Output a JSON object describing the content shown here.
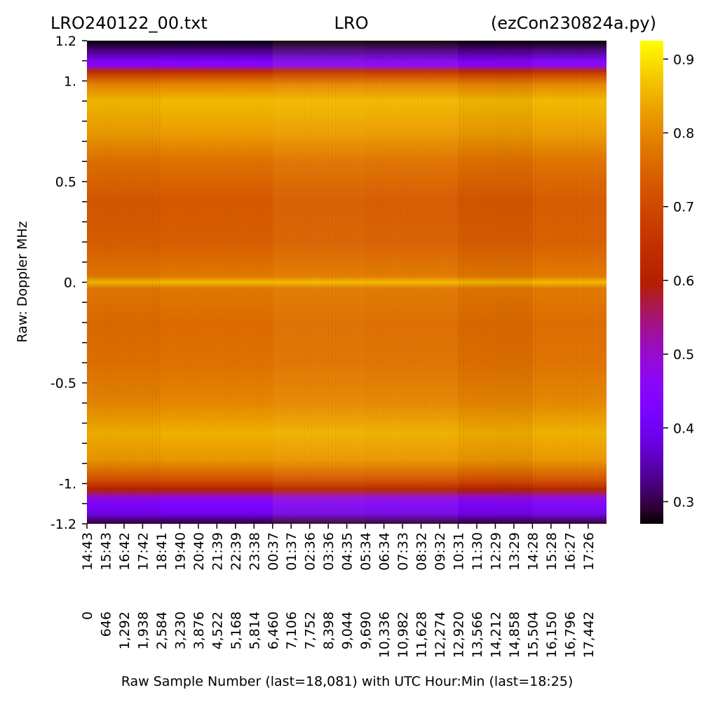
{
  "chart_data": {
    "type": "heatmap",
    "colormap": "gnuplot",
    "title_left": "LRO240122_00.txt",
    "title_center": "LRO",
    "title_right": "(ezCon230824a.py)",
    "xlabel": "Raw Sample Number (last=18,081) with UTC Hour:Min (last=18:25)",
    "ylabel": "Raw:  Doppler MHz",
    "y_range": [
      -1.2,
      1.2
    ],
    "x_range": [
      0,
      18081
    ],
    "y_tick_labels": [
      {
        "value": 1.2,
        "label": "1.2"
      },
      {
        "value": 1.0,
        "label": "1."
      },
      {
        "value": 0.5,
        "label": "0.5"
      },
      {
        "value": 0.0,
        "label": "0."
      },
      {
        "value": -0.5,
        "label": "-0.5"
      },
      {
        "value": -1.0,
        "label": "-1."
      },
      {
        "value": -1.2,
        "label": "-1.2"
      }
    ],
    "y_minor_step": 0.1,
    "x_ticks": [
      {
        "sample": 0,
        "sample_label": "0",
        "time": "14:43"
      },
      {
        "sample": 646,
        "sample_label": "646",
        "time": "15:43"
      },
      {
        "sample": 1292,
        "sample_label": "1,292",
        "time": "16:42"
      },
      {
        "sample": 1938,
        "sample_label": "1,938",
        "time": "17:42"
      },
      {
        "sample": 2584,
        "sample_label": "2,584",
        "time": "18:41"
      },
      {
        "sample": 3230,
        "sample_label": "3,230",
        "time": "19:40"
      },
      {
        "sample": 3876,
        "sample_label": "3,876",
        "time": "20:40"
      },
      {
        "sample": 4522,
        "sample_label": "4,522",
        "time": "21:39"
      },
      {
        "sample": 5168,
        "sample_label": "5,168",
        "time": "22:39"
      },
      {
        "sample": 5814,
        "sample_label": "5,814",
        "time": "23:38"
      },
      {
        "sample": 6460,
        "sample_label": "6,460",
        "time": "00:37"
      },
      {
        "sample": 7106,
        "sample_label": "7,106",
        "time": "01:37"
      },
      {
        "sample": 7752,
        "sample_label": "7,752",
        "time": "02:36"
      },
      {
        "sample": 8398,
        "sample_label": "8,398",
        "time": "03:36"
      },
      {
        "sample": 9044,
        "sample_label": "9,044",
        "time": "04:35"
      },
      {
        "sample": 9690,
        "sample_label": "9,690",
        "time": "05:34"
      },
      {
        "sample": 10336,
        "sample_label": "10,336",
        "time": "06:34"
      },
      {
        "sample": 10982,
        "sample_label": "10,982",
        "time": "07:33"
      },
      {
        "sample": 11628,
        "sample_label": "11,628",
        "time": "08:32"
      },
      {
        "sample": 12274,
        "sample_label": "12,274",
        "time": "09:32"
      },
      {
        "sample": 12920,
        "sample_label": "12,920",
        "time": "10:31"
      },
      {
        "sample": 13566,
        "sample_label": "13,566",
        "time": "11:30"
      },
      {
        "sample": 14212,
        "sample_label": "14,212",
        "time": "12:29"
      },
      {
        "sample": 14858,
        "sample_label": "14,858",
        "time": "13:29"
      },
      {
        "sample": 15504,
        "sample_label": "15,504",
        "time": "14:28"
      },
      {
        "sample": 16150,
        "sample_label": "16,150",
        "time": "15:28"
      },
      {
        "sample": 16796,
        "sample_label": "16,796",
        "time": "16:27"
      },
      {
        "sample": 17442,
        "sample_label": "17,442",
        "time": "17:26"
      }
    ],
    "colorbar": {
      "range": [
        0.27,
        0.925
      ],
      "ticks": [
        {
          "value": 0.3,
          "label": "0.3"
        },
        {
          "value": 0.4,
          "label": "0.4"
        },
        {
          "value": 0.5,
          "label": "0.5"
        },
        {
          "value": 0.6,
          "label": "0.6"
        },
        {
          "value": 0.7,
          "label": "0.7"
        },
        {
          "value": 0.8,
          "label": "0.8"
        },
        {
          "value": 0.9,
          "label": "0.9"
        }
      ]
    },
    "spectrum_profile": [
      {
        "doppler": 1.2,
        "value": 0.27
      },
      {
        "doppler": 1.15,
        "value": 0.33
      },
      {
        "doppler": 1.1,
        "value": 0.42
      },
      {
        "doppler": 1.07,
        "value": 0.48
      },
      {
        "doppler": 1.05,
        "value": 0.63
      },
      {
        "doppler": 1.02,
        "value": 0.72
      },
      {
        "doppler": 0.98,
        "value": 0.8
      },
      {
        "doppler": 0.9,
        "value": 0.86
      },
      {
        "doppler": 0.75,
        "value": 0.83
      },
      {
        "doppler": 0.6,
        "value": 0.77
      },
      {
        "doppler": 0.4,
        "value": 0.73
      },
      {
        "doppler": 0.2,
        "value": 0.74
      },
      {
        "doppler": 0.03,
        "value": 0.78
      },
      {
        "doppler": 0.0,
        "value": 0.86
      },
      {
        "doppler": -0.03,
        "value": 0.78
      },
      {
        "doppler": -0.2,
        "value": 0.76
      },
      {
        "doppler": -0.4,
        "value": 0.77
      },
      {
        "doppler": -0.6,
        "value": 0.8
      },
      {
        "doppler": -0.75,
        "value": 0.85
      },
      {
        "doppler": -0.88,
        "value": 0.82
      },
      {
        "doppler": -0.98,
        "value": 0.72
      },
      {
        "doppler": -1.03,
        "value": 0.6
      },
      {
        "doppler": -1.07,
        "value": 0.48
      },
      {
        "doppler": -1.1,
        "value": 0.43
      },
      {
        "doppler": -1.15,
        "value": 0.4
      },
      {
        "doppler": -1.2,
        "value": 0.29
      }
    ],
    "time_variation": [
      {
        "sample": 0,
        "offset": 0.0
      },
      {
        "sample": 2584,
        "offset": -0.01
      },
      {
        "sample": 6460,
        "offset": 0.01
      },
      {
        "sample": 9690,
        "offset": 0.015
      },
      {
        "sample": 12920,
        "offset": 0.005
      },
      {
        "sample": 14212,
        "offset": -0.02
      },
      {
        "sample": 15504,
        "offset": 0.0
      },
      {
        "sample": 18081,
        "offset": 0.01
      }
    ]
  }
}
